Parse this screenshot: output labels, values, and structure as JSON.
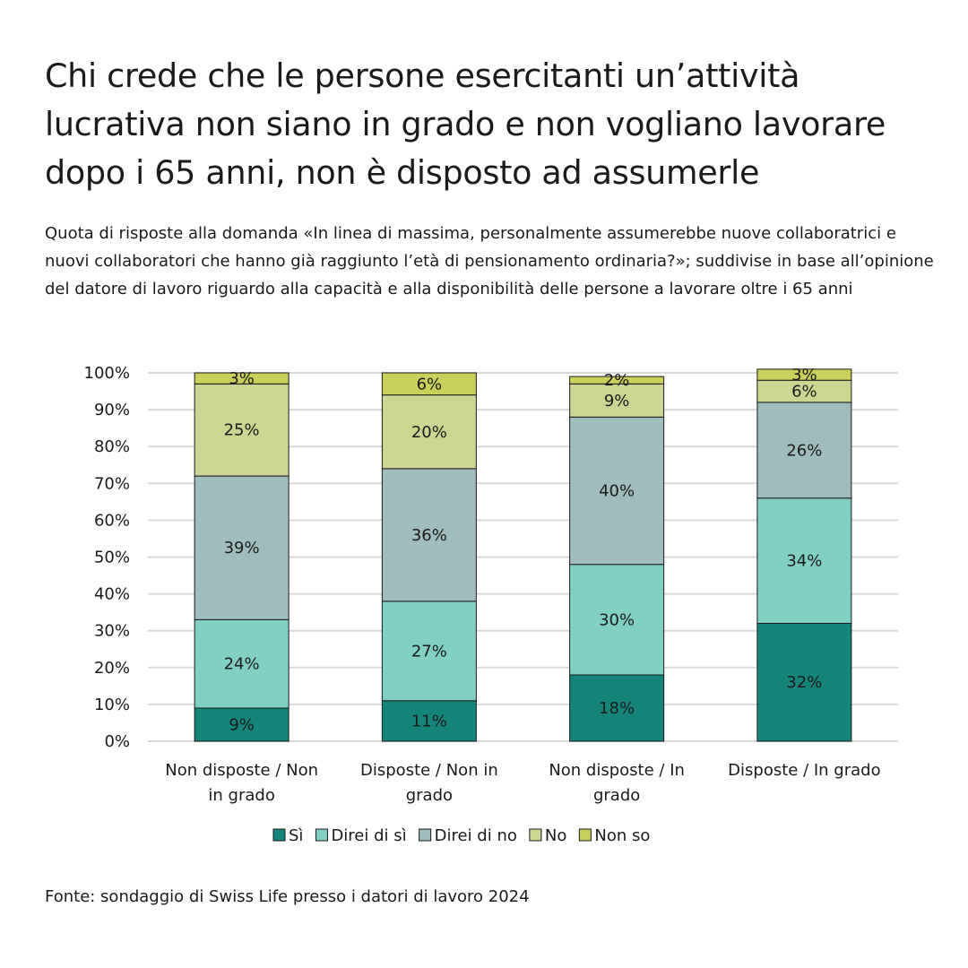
{
  "title": "Chi crede che le persone esercitanti un’attività lucrativa non siano in grado e non vogliano lavorare dopo i 65 anni, non è disposto ad assumerle",
  "subtitle": "Quota di risposte alla domanda «In linea di massima, personalmente assumerebbe nuove collaboratrici e nuovi collaboratori che hanno già raggiunto l’età di pensionamento ordinaria?»; suddivise in base all’opinione del datore di lavoro riguardo alla capacità e alla disponibilità delle persone a lavorare oltre i 65 anni",
  "source": "Fonte: sondaggio di Swiss Life presso i datori di lavoro 2024",
  "chart_data": {
    "type": "bar",
    "stacked": true,
    "categories": [
      [
        "Non disposte / Non",
        "in grado"
      ],
      [
        "Disposte / Non in",
        "grado"
      ],
      [
        "Non disposte / In",
        "grado"
      ],
      [
        "Disposte / In grado"
      ]
    ],
    "ylim": [
      0,
      100
    ],
    "yticks": [
      "0%",
      "10%",
      "20%",
      "30%",
      "40%",
      "50%",
      "60%",
      "70%",
      "80%",
      "90%",
      "100%"
    ],
    "grid": true,
    "legend": "bottom",
    "series": [
      {
        "name": "Sì",
        "color": "#15847a",
        "values": [
          9,
          11,
          18,
          32
        ]
      },
      {
        "name": "Direi di sì",
        "color": "#82d0c4",
        "values": [
          24,
          27,
          30,
          34
        ]
      },
      {
        "name": "Direi di no",
        "color": "#9fbdbd",
        "values": [
          39,
          36,
          40,
          26
        ]
      },
      {
        "name": "No",
        "color": "#cdd592",
        "values": [
          25,
          20,
          9,
          6
        ]
      },
      {
        "name": "Non so",
        "color": "#c9d15a",
        "values": [
          3,
          6,
          2,
          3
        ]
      }
    ]
  }
}
